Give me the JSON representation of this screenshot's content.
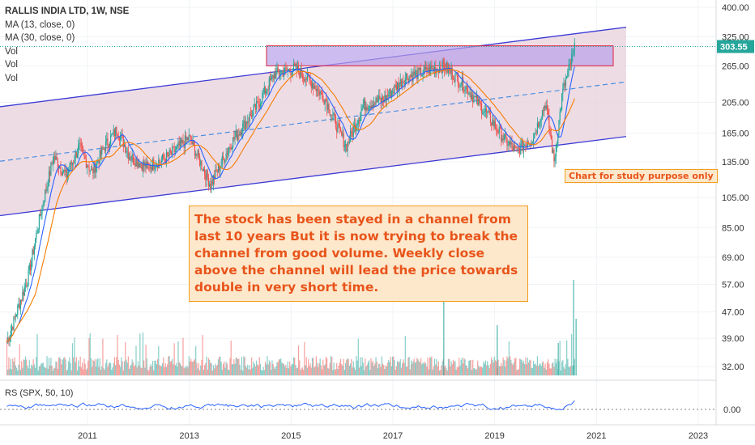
{
  "chart_data": {
    "type": "candlestick",
    "symbol_line": "RALLIS INDIA LTD, 1W, NSE",
    "indicators": [
      "MA (13, close, 0)",
      "MA (30, close, 0)",
      "Vol",
      "Vol",
      "Vol"
    ],
    "rs_label": "RS (SPX, 50, 10)",
    "last_price": 303.55,
    "last_price_label": "303.55",
    "price_ticks": [
      "400.00",
      "325.00",
      "265.00",
      "205.00",
      "165.00",
      "135.00",
      "105.00",
      "85.00",
      "69.00",
      "57.00",
      "47.00",
      "39.00",
      "32.00"
    ],
    "rs_ticks": [
      "0.00"
    ],
    "x_ticks": [
      "2011",
      "2013",
      "2015",
      "2017",
      "2019",
      "2021",
      "2023"
    ],
    "scale": "log",
    "channel": {
      "upper": [
        {
          "date": "2009-06",
          "price": 200
        },
        {
          "date": "2021-06",
          "price": 345
        }
      ],
      "lower": [
        {
          "date": "2009-06",
          "price": 93
        },
        {
          "date": "2021-06",
          "price": 160
        }
      ]
    },
    "resistance_zone": {
      "from": "2014-09",
      "to": "2021-03",
      "low": 265,
      "high": 305
    },
    "price_path": [
      {
        "date": "2009-06",
        "price": 38
      },
      {
        "date": "2009-11",
        "price": 60
      },
      {
        "date": "2010-02",
        "price": 95
      },
      {
        "date": "2010-05",
        "price": 140
      },
      {
        "date": "2010-08",
        "price": 122
      },
      {
        "date": "2010-11",
        "price": 150
      },
      {
        "date": "2011-02",
        "price": 125
      },
      {
        "date": "2011-05",
        "price": 150
      },
      {
        "date": "2011-08",
        "price": 170
      },
      {
        "date": "2011-11",
        "price": 140
      },
      {
        "date": "2012-03",
        "price": 130
      },
      {
        "date": "2012-08",
        "price": 140
      },
      {
        "date": "2013-01",
        "price": 160
      },
      {
        "date": "2013-06",
        "price": 115
      },
      {
        "date": "2013-11",
        "price": 155
      },
      {
        "date": "2014-05",
        "price": 200
      },
      {
        "date": "2014-09",
        "price": 250
      },
      {
        "date": "2015-02",
        "price": 260
      },
      {
        "date": "2015-06",
        "price": 235
      },
      {
        "date": "2015-09",
        "price": 210
      },
      {
        "date": "2016-02",
        "price": 150
      },
      {
        "date": "2016-06",
        "price": 200
      },
      {
        "date": "2016-11",
        "price": 210
      },
      {
        "date": "2017-04",
        "price": 245
      },
      {
        "date": "2017-09",
        "price": 255
      },
      {
        "date": "2018-01",
        "price": 265
      },
      {
        "date": "2018-06",
        "price": 230
      },
      {
        "date": "2018-11",
        "price": 190
      },
      {
        "date": "2019-03",
        "price": 160
      },
      {
        "date": "2019-06",
        "price": 145
      },
      {
        "date": "2019-10",
        "price": 160
      },
      {
        "date": "2020-01",
        "price": 205
      },
      {
        "date": "2020-03",
        "price": 135
      },
      {
        "date": "2020-05",
        "price": 220
      },
      {
        "date": "2020-08",
        "price": 303.55
      }
    ],
    "annotation": "The stock has been stayed in a channel from last 10 years But it is now trying to break the channel from good volume. Weekly close above the channel will lead the price towards double in very short time.",
    "badge": "Chart for study purpose only",
    "colors": {
      "up": "#26a69a",
      "down": "#ef5350",
      "ma13": "#2962ff",
      "ma30": "#f57c00",
      "channel_line": "#3a3ad6",
      "channel_fill": "#e8d0dc",
      "mid_dash": "#4a8fe0",
      "zone_fill": "#b8a0e8",
      "zone_border": "#e0203a",
      "price_label": "#26a69a",
      "rs_line": "#2962ff"
    }
  }
}
